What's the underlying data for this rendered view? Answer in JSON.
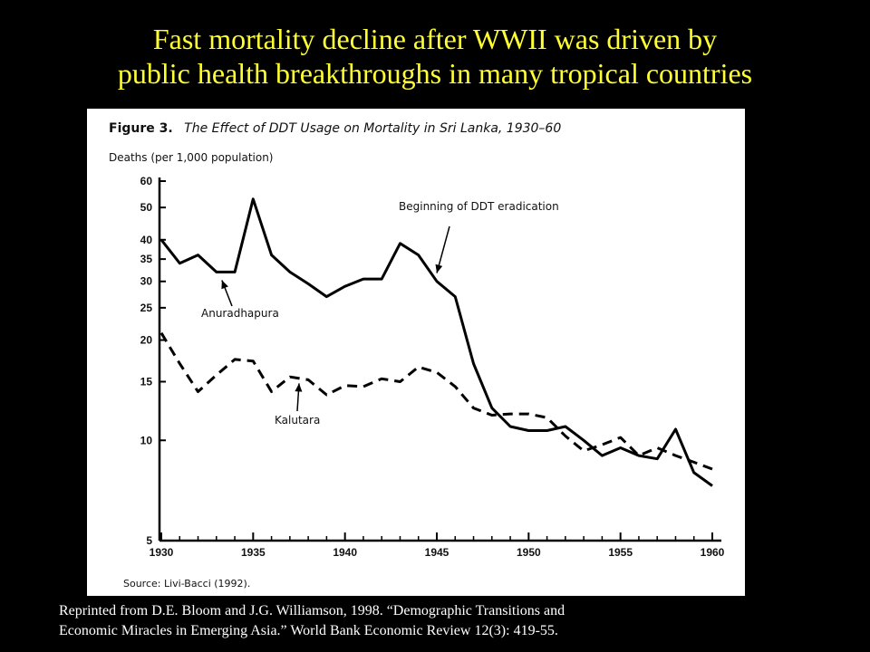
{
  "slide": {
    "title_line1": "Fast mortality decline after WWII was driven by",
    "title_line2": "public health breakthroughs in many tropical countries",
    "footnote_line1": "Reprinted from D.E. Bloom and J.G. Williamson, 1998. “Demographic Transitions and",
    "footnote_line2": "Economic Miracles in Emerging Asia.”  World Bank Economic Review 12(3): 419-55."
  },
  "chart_data": {
    "type": "line",
    "figure_label": "Figure 3.",
    "title": "The Effect of DDT Usage on Mortality in Sri Lanka, 1930–60",
    "ylabel": "Deaths (per 1,000 population)",
    "source": "Source: Livi-Bacci (1992).",
    "y_scale": "log",
    "ylim": [
      5,
      60
    ],
    "xlim": [
      1930,
      1960
    ],
    "y_ticks": [
      5,
      10,
      15,
      20,
      25,
      30,
      35,
      40,
      50,
      60
    ],
    "x_ticks": [
      1930,
      1935,
      1940,
      1945,
      1950,
      1955,
      1960
    ],
    "series": [
      {
        "name": "Anuradhapura",
        "style": "solid",
        "color": "#000000",
        "x": [
          1930,
          1931,
          1932,
          1933,
          1934,
          1935,
          1936,
          1937,
          1938,
          1939,
          1940,
          1941,
          1942,
          1943,
          1944,
          1945,
          1946,
          1947,
          1948,
          1949,
          1950,
          1951,
          1952,
          1953,
          1954,
          1955,
          1956,
          1957,
          1958,
          1959,
          1960
        ],
        "y": [
          40,
          34,
          36,
          32,
          32,
          53,
          36,
          32,
          29.5,
          27,
          29,
          30.5,
          30.5,
          39,
          36,
          30,
          27,
          17,
          12.5,
          11,
          10.7,
          10.7,
          11,
          10,
          9,
          9.5,
          9,
          8.8,
          10.8,
          8,
          7.3
        ]
      },
      {
        "name": "Kalutara",
        "style": "dashed",
        "color": "#000000",
        "x": [
          1930,
          1931,
          1932,
          1933,
          1934,
          1935,
          1936,
          1937,
          1938,
          1939,
          1940,
          1941,
          1942,
          1943,
          1944,
          1945,
          1946,
          1947,
          1948,
          1949,
          1950,
          1951,
          1952,
          1953,
          1954,
          1955,
          1956,
          1957,
          1958,
          1959,
          1960
        ],
        "y": [
          21,
          17,
          14,
          15.7,
          17.5,
          17.3,
          14,
          15.5,
          15.2,
          13.7,
          14.6,
          14.5,
          15.3,
          15,
          16.6,
          16,
          14.5,
          12.5,
          11.9,
          12,
          12,
          11.7,
          10.3,
          9.3,
          9.7,
          10.2,
          9,
          9.5,
          9,
          8.6,
          8.2
        ]
      }
    ],
    "annotations": [
      {
        "text": "Beginning of DDT eradication",
        "arrow_to": {
          "x": 1945,
          "y": 31
        }
      },
      {
        "text": "Anuradhapura",
        "arrow_to": {
          "x": 1933.3,
          "y": 31
        }
      },
      {
        "text": "Kalutara",
        "arrow_to": {
          "x": 1937.5,
          "y": 15.2
        }
      }
    ],
    "grid": false,
    "legend": "none"
  }
}
